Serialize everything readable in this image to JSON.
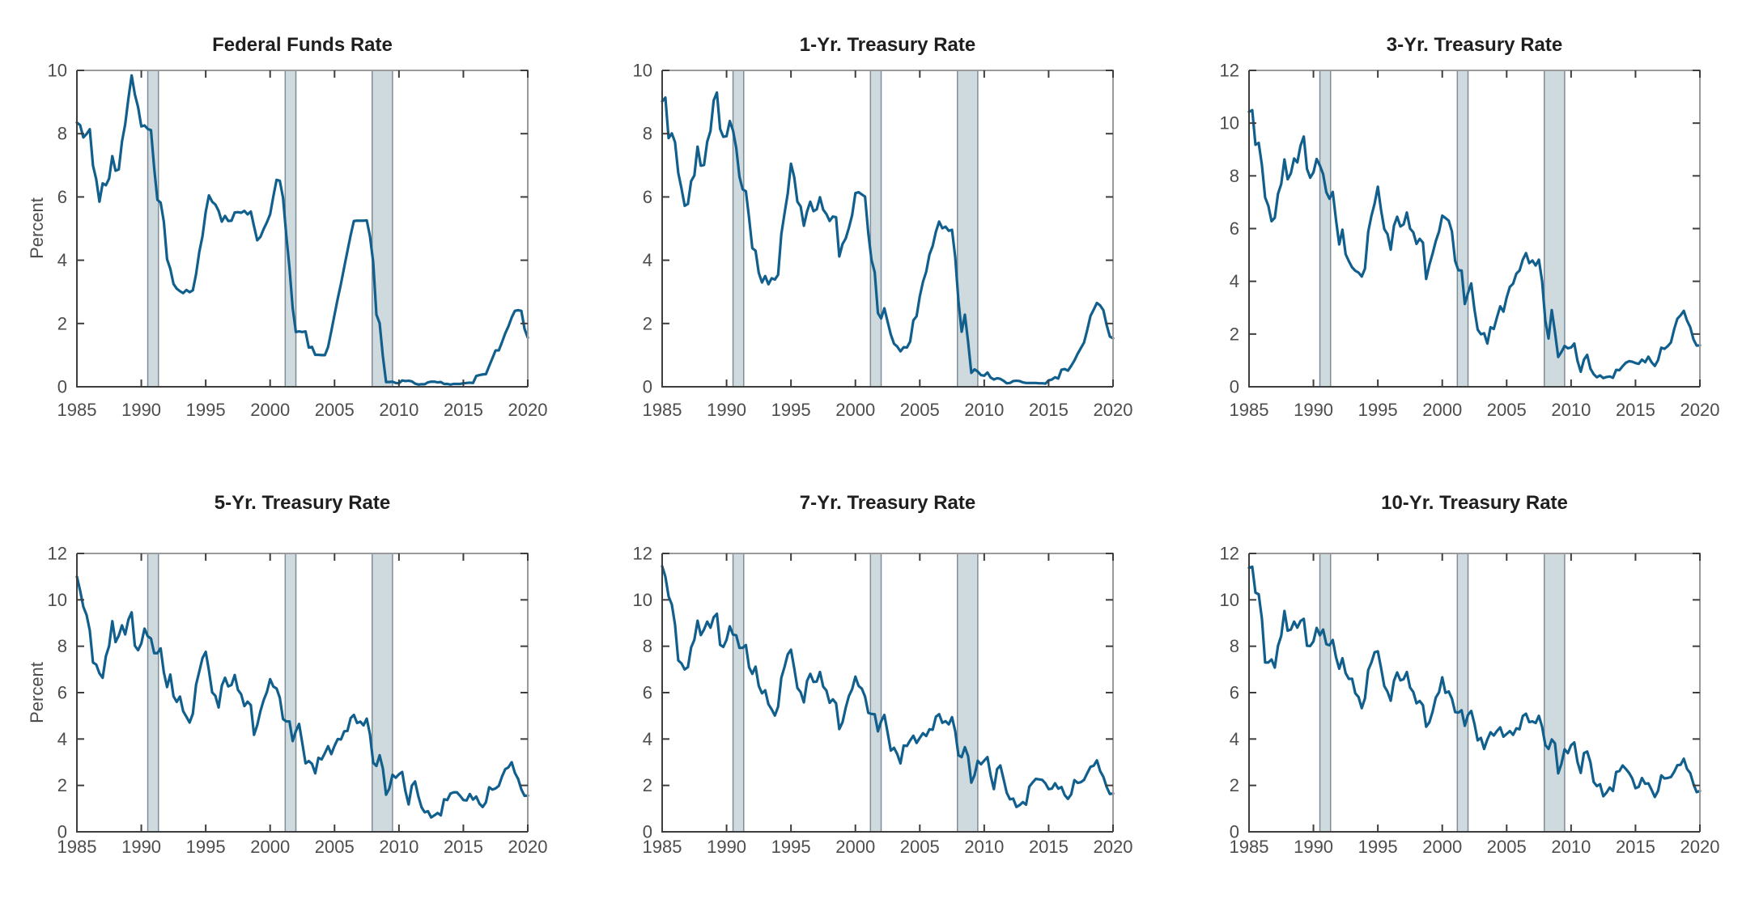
{
  "figure": {
    "background": "#ffffff",
    "line_color": "#115F8D",
    "band_fill": "#cfdade",
    "band_edge": "#7e8d98",
    "axis_dark": "#3d3d3d",
    "axis_light": "#9a9a9a",
    "tick_label_color": "#4d4d4d",
    "title_color": "#1f1f1f"
  },
  "chart_data": [
    {
      "type": "line",
      "title": "Federal Funds Rate",
      "ylabel": "Percent",
      "xlim": [
        1985,
        2020
      ],
      "ylim": [
        0,
        10
      ],
      "xticks": [
        1985,
        1990,
        1995,
        2000,
        2005,
        2010,
        2015,
        2020
      ],
      "yticks": [
        0,
        2,
        4,
        6,
        8,
        10
      ],
      "grid": false,
      "legend": null,
      "recession_bands": [
        [
          1990.5,
          1991.33
        ],
        [
          2001.17,
          2002.0
        ],
        [
          2007.92,
          2009.5
        ]
      ],
      "x_start": 1985,
      "x_step": 0.25,
      "values": [
        8.35,
        8.27,
        7.88,
        7.99,
        8.14,
        6.99,
        6.56,
        5.85,
        6.43,
        6.37,
        6.58,
        7.29,
        6.83,
        6.87,
        7.75,
        8.3,
        9.12,
        9.84,
        9.24,
        8.84,
        8.23,
        8.26,
        8.15,
        8.11,
        6.91,
        5.91,
        5.82,
        5.21,
        4.03,
        3.73,
        3.25,
        3.1,
        3.02,
        2.96,
        3.06,
        2.99,
        3.05,
        3.56,
        4.26,
        4.76,
        5.53,
        6.05,
        5.85,
        5.76,
        5.56,
        5.22,
        5.4,
        5.24,
        5.25,
        5.51,
        5.52,
        5.5,
        5.56,
        5.45,
        5.54,
        5.07,
        4.63,
        4.74,
        4.99,
        5.2,
        5.45,
        6.02,
        6.54,
        6.51,
        5.98,
        4.8,
        3.77,
        2.49,
        1.73,
        1.75,
        1.73,
        1.75,
        1.24,
        1.26,
        1.01,
        1.01,
        1.0,
        1.0,
        1.26,
        1.76,
        2.28,
        2.79,
        3.26,
        3.78,
        4.29,
        4.79,
        5.24,
        5.25,
        5.25,
        5.25,
        5.26,
        4.76,
        3.94,
        2.28,
        2.01,
        0.97,
        0.15,
        0.15,
        0.16,
        0.12,
        0.11,
        0.2,
        0.18,
        0.19,
        0.17,
        0.1,
        0.07,
        0.08,
        0.08,
        0.14,
        0.16,
        0.16,
        0.14,
        0.15,
        0.09,
        0.09,
        0.07,
        0.09,
        0.09,
        0.09,
        0.11,
        0.12,
        0.13,
        0.12,
        0.34,
        0.37,
        0.39,
        0.4,
        0.65,
        0.9,
        1.15,
        1.15,
        1.41,
        1.69,
        1.91,
        2.19,
        2.4,
        2.42,
        2.4,
        1.83,
        1.55
      ]
    },
    {
      "type": "line",
      "title": "1-Yr. Treasury Rate",
      "ylabel": "",
      "xlim": [
        1985,
        2020
      ],
      "ylim": [
        0,
        10
      ],
      "xticks": [
        1985,
        1990,
        1995,
        2000,
        2005,
        2010,
        2015,
        2020
      ],
      "yticks": [
        0,
        2,
        4,
        6,
        8,
        10
      ],
      "grid": false,
      "legend": null,
      "recession_bands": [
        [
          1990.5,
          1991.33
        ],
        [
          2001.17,
          2002.0
        ],
        [
          2007.92,
          2009.5
        ]
      ],
      "x_start": 1985,
      "x_step": 0.25,
      "values": [
        9.02,
        9.14,
        7.86,
        8.01,
        7.73,
        6.76,
        6.27,
        5.72,
        5.78,
        6.5,
        6.68,
        7.59,
        6.99,
        7.01,
        7.75,
        8.08,
        9.05,
        9.3,
        8.15,
        7.9,
        7.92,
        8.4,
        8.1,
        7.55,
        6.64,
        6.24,
        6.18,
        5.33,
        4.38,
        4.3,
        3.6,
        3.3,
        3.5,
        3.24,
        3.43,
        3.39,
        3.54,
        4.82,
        5.48,
        6.11,
        7.05,
        6.63,
        5.85,
        5.7,
        5.09,
        5.54,
        5.85,
        5.55,
        5.61,
        5.99,
        5.6,
        5.46,
        5.24,
        5.38,
        5.36,
        4.12,
        4.51,
        4.69,
        5.03,
        5.43,
        6.12,
        6.15,
        6.08,
        6.01,
        4.86,
        4.01,
        3.62,
        2.33,
        2.16,
        2.48,
        2.06,
        1.65,
        1.36,
        1.27,
        1.12,
        1.25,
        1.24,
        1.43,
        2.1,
        2.23,
        2.86,
        3.32,
        3.64,
        4.18,
        4.45,
        4.9,
        5.22,
        5.01,
        5.06,
        4.93,
        4.96,
        4.1,
        2.71,
        1.74,
        2.28,
        1.42,
        0.44,
        0.55,
        0.48,
        0.37,
        0.35,
        0.45,
        0.29,
        0.23,
        0.27,
        0.25,
        0.19,
        0.11,
        0.12,
        0.18,
        0.19,
        0.18,
        0.14,
        0.12,
        0.12,
        0.12,
        0.12,
        0.11,
        0.11,
        0.1,
        0.2,
        0.23,
        0.3,
        0.26,
        0.54,
        0.56,
        0.51,
        0.66,
        0.83,
        1.04,
        1.22,
        1.4,
        1.8,
        2.24,
        2.44,
        2.65,
        2.57,
        2.42,
        1.96,
        1.59,
        1.53
      ]
    },
    {
      "type": "line",
      "title": "3-Yr. Treasury Rate",
      "ylabel": "",
      "xlim": [
        1985,
        2020
      ],
      "ylim": [
        0,
        12
      ],
      "xticks": [
        1985,
        1990,
        1995,
        2000,
        2005,
        2010,
        2015,
        2020
      ],
      "yticks": [
        0,
        2,
        4,
        6,
        8,
        10,
        12
      ],
      "grid": false,
      "legend": null,
      "recession_bands": [
        [
          1990.5,
          1991.33
        ],
        [
          2001.17,
          2002.0
        ],
        [
          2007.92,
          2009.5
        ]
      ],
      "x_start": 1985,
      "x_step": 0.25,
      "values": [
        10.43,
        10.49,
        9.18,
        9.25,
        8.41,
        7.18,
        6.86,
        6.28,
        6.41,
        7.32,
        7.69,
        8.62,
        7.87,
        8.1,
        8.66,
        8.51,
        9.15,
        9.49,
        8.26,
        7.93,
        8.13,
        8.64,
        8.39,
        8.07,
        7.38,
        7.13,
        7.39,
        6.34,
        5.4,
        5.96,
        5.03,
        4.76,
        4.53,
        4.4,
        4.33,
        4.18,
        4.48,
        5.87,
        6.48,
        6.95,
        7.59,
        6.7,
        5.98,
        5.79,
        5.2,
        6.11,
        6.45,
        6.08,
        6.16,
        6.61,
        6.0,
        5.86,
        5.42,
        5.61,
        5.47,
        4.09,
        4.62,
        5.05,
        5.53,
        5.89,
        6.49,
        6.4,
        6.3,
        5.89,
        4.77,
        4.42,
        4.41,
        3.14,
        3.56,
        3.92,
        2.93,
        2.17,
        1.99,
        2.03,
        1.64,
        2.26,
        2.19,
        2.64,
        3.05,
        2.85,
        3.39,
        3.79,
        3.91,
        4.29,
        4.41,
        4.82,
        5.07,
        4.69,
        4.79,
        4.6,
        4.82,
        4.01,
        2.51,
        1.83,
        2.91,
        2.08,
        1.13,
        1.32,
        1.55,
        1.46,
        1.49,
        1.64,
        0.98,
        0.57,
        1.03,
        1.21,
        0.69,
        0.48,
        0.36,
        0.43,
        0.33,
        0.37,
        0.39,
        0.34,
        0.64,
        0.63,
        0.78,
        0.91,
        0.97,
        0.95,
        0.9,
        0.87,
        1.03,
        0.93,
        1.14,
        0.93,
        0.79,
        1.01,
        1.48,
        1.44,
        1.54,
        1.68,
        2.18,
        2.58,
        2.71,
        2.88,
        2.51,
        2.26,
        1.8,
        1.56,
        1.57
      ]
    },
    {
      "type": "line",
      "title": "5-Yr. Treasury Rate",
      "ylabel": "Percent",
      "xlim": [
        1985,
        2020
      ],
      "ylim": [
        0,
        12
      ],
      "xticks": [
        1985,
        1990,
        1995,
        2000,
        2005,
        2010,
        2015,
        2020
      ],
      "yticks": [
        0,
        2,
        4,
        6,
        8,
        10,
        12
      ],
      "grid": false,
      "legend": null,
      "recession_bands": [
        [
          1990.5,
          1991.33
        ],
        [
          2001.17,
          2002.0
        ],
        [
          2007.92,
          2009.5
        ]
      ],
      "x_start": 1985,
      "x_step": 0.25,
      "values": [
        11.0,
        10.4,
        9.7,
        9.35,
        8.68,
        7.3,
        7.21,
        6.83,
        6.64,
        7.57,
        8.01,
        9.08,
        8.18,
        8.46,
        8.9,
        8.51,
        9.15,
        9.46,
        8.02,
        7.83,
        8.12,
        8.76,
        8.43,
        8.33,
        7.7,
        7.7,
        7.91,
        6.87,
        6.24,
        6.78,
        5.84,
        5.6,
        5.83,
        5.2,
        4.96,
        4.71,
        5.09,
        6.34,
        6.91,
        7.49,
        7.76,
        6.95,
        6.01,
        5.86,
        5.36,
        6.3,
        6.64,
        6.27,
        6.33,
        6.76,
        6.12,
        5.93,
        5.42,
        5.61,
        5.46,
        4.18,
        4.6,
        5.21,
        5.68,
        6.03,
        6.58,
        6.26,
        6.18,
        5.78,
        4.86,
        4.76,
        4.76,
        3.91,
        4.34,
        4.65,
        3.81,
        2.95,
        3.05,
        2.93,
        2.52,
        3.19,
        3.12,
        3.39,
        3.69,
        3.35,
        3.71,
        4.0,
        3.98,
        4.33,
        4.35,
        4.9,
        5.04,
        4.69,
        4.75,
        4.59,
        4.88,
        4.2,
        2.98,
        2.84,
        3.3,
        2.73,
        1.6,
        1.86,
        2.46,
        2.33,
        2.48,
        2.58,
        1.76,
        1.18,
        1.99,
        2.17,
        1.54,
        1.06,
        0.84,
        0.89,
        0.62,
        0.71,
        0.81,
        0.71,
        1.4,
        1.37,
        1.65,
        1.7,
        1.7,
        1.55,
        1.37,
        1.35,
        1.63,
        1.39,
        1.52,
        1.21,
        1.07,
        1.27,
        1.92,
        1.82,
        1.87,
        1.98,
        2.38,
        2.7,
        2.78,
        3.0,
        2.54,
        2.28,
        1.83,
        1.55,
        1.56
      ]
    },
    {
      "type": "line",
      "title": "7-Yr. Treasury Rate",
      "ylabel": "",
      "xlim": [
        1985,
        2020
      ],
      "ylim": [
        0,
        12
      ],
      "xticks": [
        1985,
        1990,
        1995,
        2000,
        2005,
        2010,
        2015,
        2020
      ],
      "yticks": [
        0,
        2,
        4,
        6,
        8,
        10,
        12
      ],
      "grid": false,
      "legend": null,
      "recession_bands": [
        [
          1990.5,
          1991.33
        ],
        [
          2001.17,
          2002.0
        ],
        [
          2007.92,
          2009.5
        ]
      ],
      "x_start": 1985,
      "x_step": 0.25,
      "values": [
        11.45,
        11.0,
        10.15,
        9.8,
        8.93,
        7.39,
        7.26,
        7.0,
        7.1,
        7.95,
        8.28,
        9.1,
        8.48,
        8.72,
        9.06,
        8.8,
        9.25,
        9.4,
        8.06,
        7.97,
        8.28,
        8.86,
        8.5,
        8.47,
        7.93,
        7.93,
        8.05,
        7.09,
        6.81,
        7.12,
        6.29,
        5.97,
        6.1,
        5.5,
        5.28,
        5.01,
        5.39,
        6.64,
        7.11,
        7.65,
        7.85,
        7.06,
        6.2,
        6.02,
        5.58,
        6.51,
        6.81,
        6.46,
        6.48,
        6.89,
        6.26,
        6.09,
        5.56,
        5.71,
        5.54,
        4.43,
        4.72,
        5.35,
        5.86,
        6.15,
        6.69,
        6.29,
        6.17,
        5.83,
        5.13,
        5.08,
        5.07,
        4.33,
        4.76,
        5.04,
        4.28,
        3.5,
        3.62,
        3.35,
        2.95,
        3.72,
        3.7,
        3.94,
        4.14,
        3.83,
        4.05,
        4.25,
        4.13,
        4.42,
        4.4,
        4.96,
        5.07,
        4.7,
        4.77,
        4.63,
        4.94,
        4.34,
        3.3,
        3.22,
        3.65,
        3.26,
        2.12,
        2.44,
        3.06,
        2.91,
        3.07,
        3.22,
        2.43,
        1.84,
        2.7,
        2.86,
        2.28,
        1.68,
        1.4,
        1.43,
        1.07,
        1.15,
        1.28,
        1.17,
        1.95,
        2.12,
        2.28,
        2.26,
        2.24,
        2.09,
        1.84,
        1.86,
        2.09,
        1.86,
        1.93,
        1.58,
        1.42,
        1.61,
        2.23,
        2.11,
        2.14,
        2.24,
        2.53,
        2.8,
        2.85,
        3.08,
        2.62,
        2.37,
        1.94,
        1.63,
        1.65
      ]
    },
    {
      "type": "line",
      "title": "10-Yr. Treasury Rate",
      "ylabel": "",
      "xlim": [
        1985,
        2020
      ],
      "ylim": [
        0,
        12
      ],
      "xticks": [
        1985,
        1990,
        1995,
        2000,
        2005,
        2010,
        2015,
        2020
      ],
      "yticks": [
        0,
        2,
        4,
        6,
        8,
        10,
        12
      ],
      "grid": false,
      "legend": null,
      "recession_bands": [
        [
          1990.5,
          1991.33
        ],
        [
          2001.17,
          2002.0
        ],
        [
          2007.92,
          2009.5
        ]
      ],
      "x_start": 1985,
      "x_step": 0.25,
      "values": [
        11.38,
        11.43,
        10.31,
        10.24,
        9.19,
        7.3,
        7.3,
        7.43,
        7.08,
        8.02,
        8.45,
        9.52,
        8.67,
        8.72,
        9.06,
        8.8,
        9.09,
        9.18,
        8.02,
        8.01,
        8.21,
        8.79,
        8.47,
        8.72,
        8.09,
        8.04,
        8.27,
        7.53,
        7.03,
        7.48,
        6.84,
        6.59,
        6.6,
        5.97,
        5.81,
        5.33,
        5.75,
        6.97,
        7.3,
        7.74,
        7.78,
        7.06,
        6.28,
        6.04,
        5.65,
        6.51,
        6.87,
        6.53,
        6.58,
        6.89,
        6.22,
        6.03,
        5.54,
        5.64,
        5.46,
        4.53,
        4.72,
        5.18,
        5.79,
        6.02,
        6.66,
        5.99,
        6.05,
        5.74,
        5.16,
        5.14,
        5.24,
        4.57,
        5.04,
        5.21,
        4.65,
        3.94,
        4.05,
        3.57,
        3.98,
        4.29,
        4.15,
        4.35,
        4.5,
        4.1,
        4.22,
        4.34,
        4.18,
        4.46,
        4.42,
        4.99,
        5.09,
        4.73,
        4.76,
        4.69,
        5.0,
        4.53,
        3.74,
        3.57,
        3.98,
        3.81,
        2.52,
        2.93,
        3.56,
        3.39,
        3.73,
        3.85,
        3.01,
        2.54,
        3.39,
        3.46,
        3.0,
        2.15,
        1.97,
        2.05,
        1.53,
        1.69,
        1.91,
        1.76,
        2.58,
        2.62,
        2.86,
        2.71,
        2.54,
        2.3,
        1.88,
        1.94,
        2.32,
        2.07,
        2.09,
        1.81,
        1.5,
        1.76,
        2.43,
        2.3,
        2.32,
        2.36,
        2.58,
        2.87,
        2.89,
        3.15,
        2.71,
        2.53,
        2.06,
        1.71,
        1.76
      ]
    }
  ]
}
